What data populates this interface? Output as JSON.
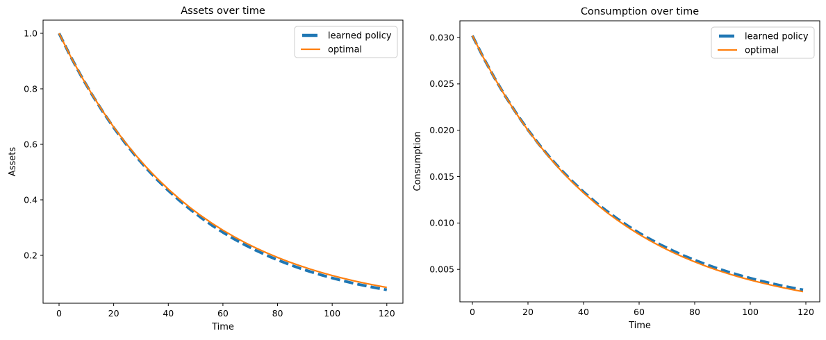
{
  "figure": {
    "background": "#ffffff",
    "text_color": "#000000",
    "spine_color": "#000000",
    "legend": {
      "position": "upper right",
      "border_color": "#cccccc",
      "background": "#ffffff",
      "entries": [
        {
          "label": "learned policy",
          "color": "#1f77b4",
          "style": "dashed-thick"
        },
        {
          "label": "optimal",
          "color": "#ff7f0e",
          "style": "solid"
        }
      ]
    }
  },
  "chart_data": [
    {
      "type": "line",
      "title": "Assets over time",
      "xlabel": "Time",
      "ylabel": "Assets",
      "grid": false,
      "legend_position": "upper right",
      "xlim": [
        -5.85,
        125.9
      ],
      "ylim": [
        0.0275,
        1.0475
      ],
      "x_ticks": [
        0,
        20,
        40,
        60,
        80,
        100,
        120
      ],
      "y_ticks": [
        0.2,
        0.4,
        0.6,
        0.8,
        1.0
      ],
      "y_tick_labels": [
        "0.2",
        "0.4",
        "0.6",
        "0.8",
        "1.0"
      ],
      "x": [
        0,
        4,
        8,
        12,
        16,
        20,
        24,
        28,
        32,
        36,
        40,
        44,
        48,
        52,
        56,
        60,
        64,
        68,
        72,
        76,
        80,
        84,
        88,
        92,
        96,
        100,
        104,
        108,
        112,
        116,
        120
      ],
      "series": [
        {
          "name": "learned policy",
          "color": "#1f77b4",
          "line": "dashed",
          "width": 4,
          "values": [
            1.0,
            0.9208,
            0.8477,
            0.7801,
            0.7178,
            0.6603,
            0.6073,
            0.5584,
            0.5133,
            0.4717,
            0.4334,
            0.3982,
            0.3656,
            0.3357,
            0.3081,
            0.2828,
            0.2594,
            0.238,
            0.2182,
            0.2001,
            0.1834,
            0.1681,
            0.154,
            0.1411,
            0.1292,
            0.1182,
            0.1082,
            0.099,
            0.0906,
            0.0828,
            0.0758
          ]
        },
        {
          "name": "optimal",
          "color": "#ff7f0e",
          "line": "solid",
          "width": 2.2,
          "values": [
            1.0,
            0.9209,
            0.8481,
            0.781,
            0.7192,
            0.6623,
            0.6099,
            0.5617,
            0.5172,
            0.4763,
            0.4386,
            0.404,
            0.372,
            0.3426,
            0.3155,
            0.2905,
            0.2676,
            0.2464,
            0.2269,
            0.209,
            0.1924,
            0.1772,
            0.1632,
            0.1503,
            0.1384,
            0.1274,
            0.1174,
            0.1081,
            0.0995,
            0.0917,
            0.0844
          ]
        }
      ]
    },
    {
      "type": "line",
      "title": "Consumption over time",
      "xlabel": "Time",
      "ylabel": "Consumption",
      "grid": false,
      "legend_position": "upper right",
      "xlim": [
        -4.5,
        125
      ],
      "ylim": [
        0.0015,
        0.0318
      ],
      "x_ticks": [
        0,
        20,
        40,
        60,
        80,
        100,
        120
      ],
      "y_ticks": [
        0.005,
        0.01,
        0.015,
        0.02,
        0.025,
        0.03
      ],
      "y_tick_labels": [
        "0.005",
        "0.010",
        "0.015",
        "0.020",
        "0.025",
        "0.030"
      ],
      "x": [
        0,
        4,
        8,
        12,
        16,
        20,
        24,
        28,
        32,
        36,
        40,
        44,
        48,
        52,
        56,
        60,
        64,
        68,
        72,
        76,
        80,
        84,
        88,
        92,
        96,
        100,
        104,
        108,
        112,
        116,
        119
      ],
      "series": [
        {
          "name": "learned policy",
          "color": "#1f77b4",
          "line": "dashed",
          "width": 4,
          "values": [
            0.0302,
            0.02781,
            0.02562,
            0.0236,
            0.02175,
            0.02004,
            0.01847,
            0.01703,
            0.0157,
            0.01448,
            0.01335,
            0.01232,
            0.01137,
            0.01049,
            0.00968,
            0.00893,
            0.00825,
            0.00761,
            0.00703,
            0.00649,
            0.006,
            0.00554,
            0.00512,
            0.00473,
            0.00438,
            0.00405,
            0.00374,
            0.00346,
            0.0032,
            0.00296,
            0.00279
          ]
        },
        {
          "name": "optimal",
          "color": "#ff7f0e",
          "line": "solid",
          "width": 2.2,
          "values": [
            0.0302,
            0.02781,
            0.02561,
            0.02359,
            0.02172,
            0.02,
            0.01842,
            0.01696,
            0.01562,
            0.01438,
            0.01325,
            0.0122,
            0.01123,
            0.01035,
            0.00953,
            0.00877,
            0.00808,
            0.00744,
            0.00685,
            0.00631,
            0.00581,
            0.00535,
            0.00493,
            0.00454,
            0.00418,
            0.00385,
            0.00355,
            0.00327,
            0.00301,
            0.00277,
            0.0026
          ]
        }
      ]
    }
  ]
}
